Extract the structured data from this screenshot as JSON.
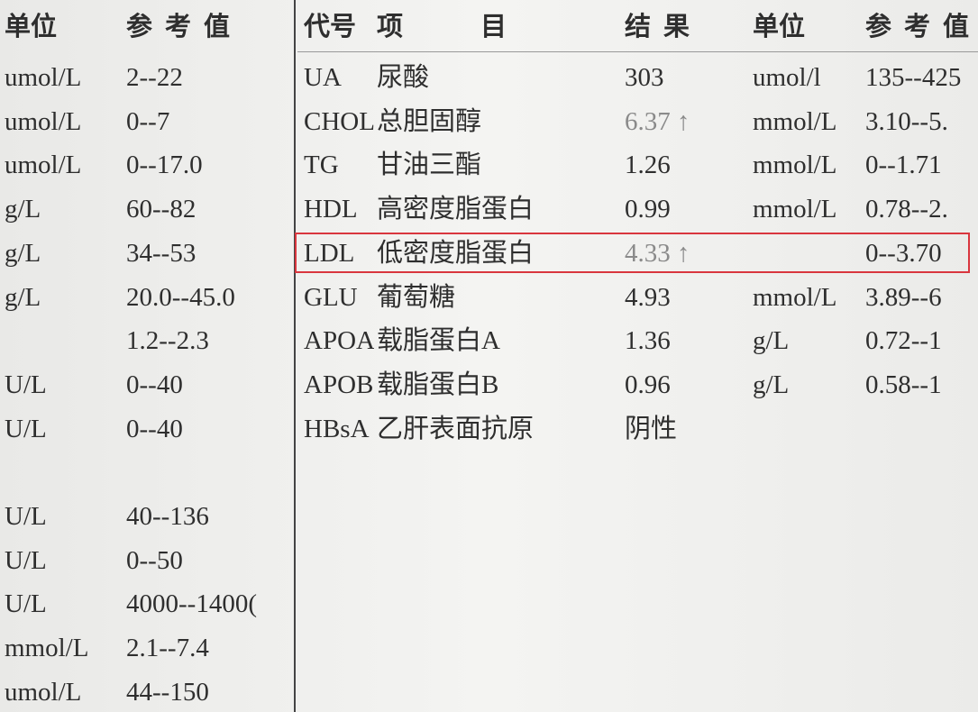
{
  "left_table": {
    "headers": [
      "单位",
      "参考值"
    ],
    "rows": [
      [
        "umol/L",
        "2--22"
      ],
      [
        "umol/L",
        "0--7"
      ],
      [
        "umol/L",
        "0--17.0"
      ],
      [
        "g/L",
        "60--82"
      ],
      [
        "g/L",
        "34--53"
      ],
      [
        "g/L",
        "20.0--45.0"
      ],
      [
        null,
        "1.2--2.3"
      ],
      [
        "U/L",
        "0--40"
      ],
      [
        "U/L",
        "0--40"
      ],
      null,
      [
        "U/L",
        "40--136"
      ],
      [
        "U/L",
        "0--50"
      ],
      [
        "U/L",
        "4000--1400("
      ],
      [
        "mmol/L",
        "2.1--7.4"
      ],
      [
        "umol/L",
        "44--150"
      ]
    ]
  },
  "right_table": {
    "headers": [
      "代号",
      "项目",
      "结果",
      "单位",
      "参考值"
    ],
    "rows": [
      [
        "UA",
        "尿酸",
        "303",
        "umol/l",
        "135--425"
      ],
      [
        "CHOL",
        "总胆固醇",
        "6.37 ↑",
        "mmol/L",
        "3.10--5."
      ],
      [
        "TG",
        "甘油三酯",
        "1.26",
        "mmol/L",
        "0--1.71"
      ],
      [
        "HDL",
        "高密度脂蛋白",
        "0.99",
        "mmol/L",
        "0.78--2."
      ],
      [
        "LDL",
        "低密度脂蛋白",
        "4.33 ↑",
        null,
        "0--3.70"
      ],
      [
        "GLU",
        "葡萄糖",
        "4.93",
        "mmol/L",
        "3.89--6"
      ],
      [
        "APOA",
        "载脂蛋白A",
        "1.36",
        "g/L",
        "0.72--1"
      ],
      [
        "APOB",
        "载脂蛋白B",
        "0.96",
        "g/L",
        "0.58--1"
      ],
      [
        "HBsA",
        "乙肝表面抗原",
        "阴性",
        null,
        null
      ]
    ]
  }
}
